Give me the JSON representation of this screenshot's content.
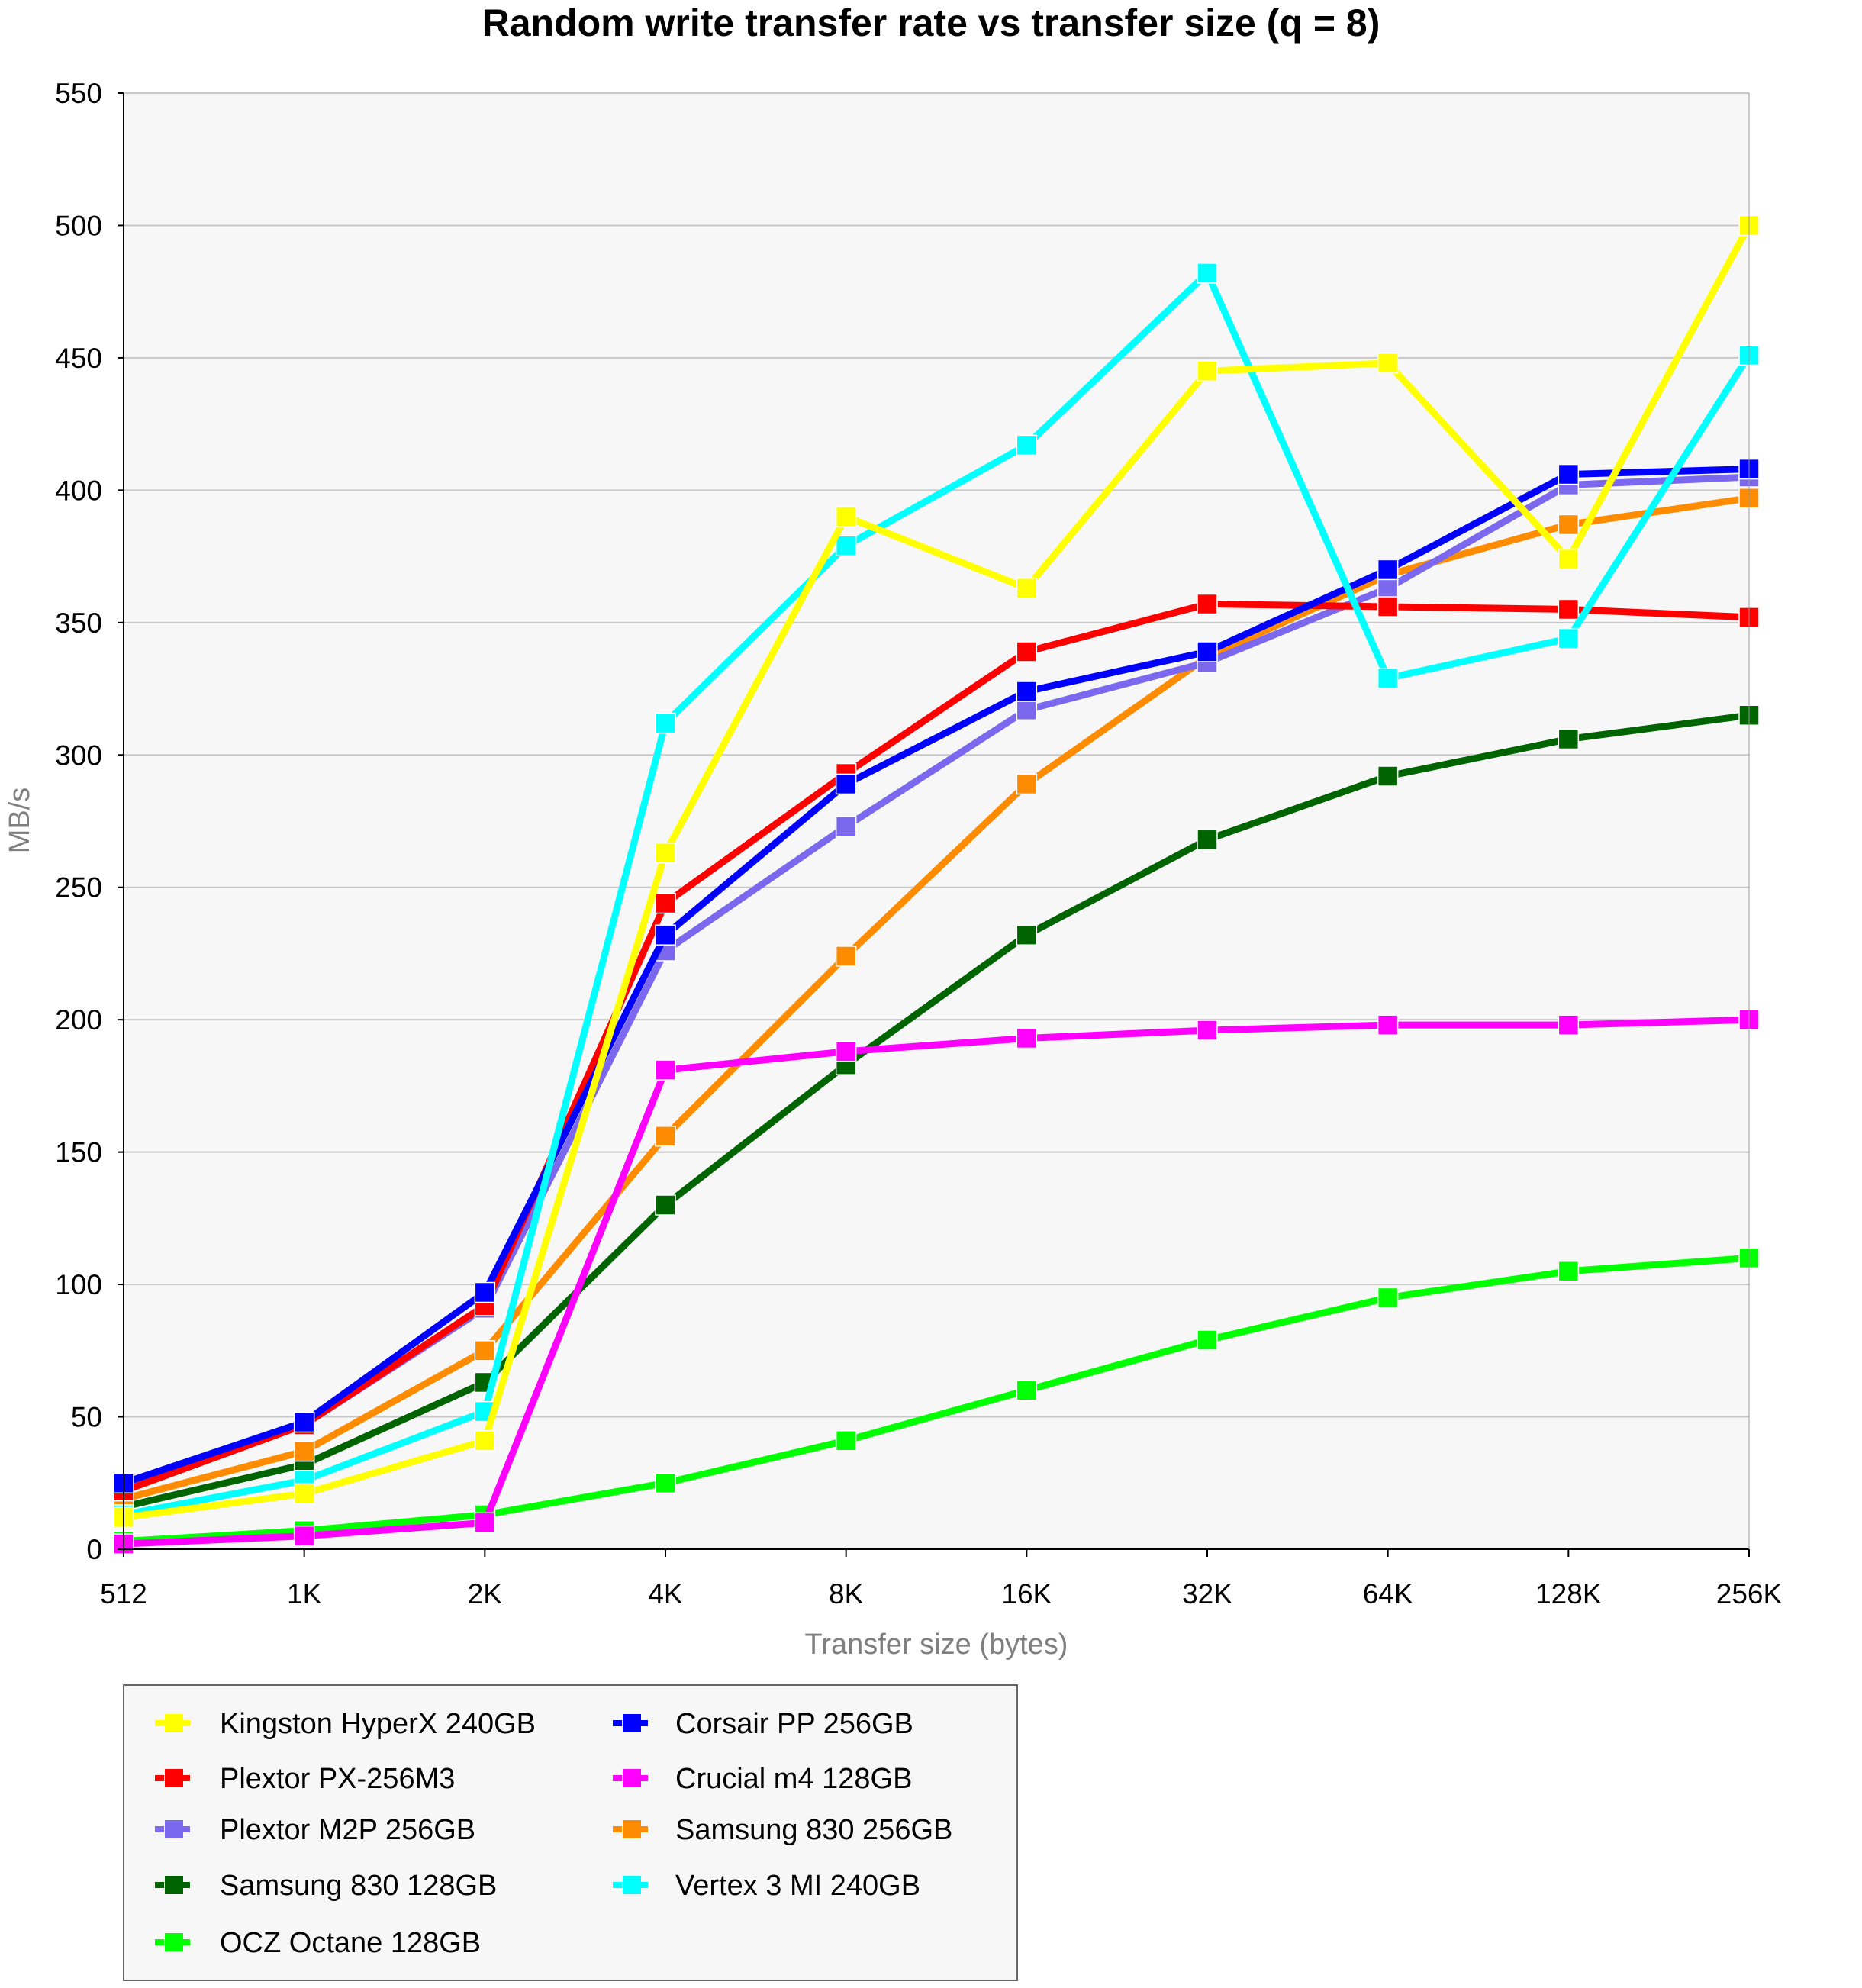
{
  "chart_data": {
    "type": "line",
    "title": "Random write transfer rate vs transfer size (q = 8)",
    "xlabel": "Transfer size (bytes)",
    "ylabel": "MB/s",
    "categories": [
      "512",
      "1K",
      "2K",
      "4K",
      "8K",
      "16K",
      "32K",
      "64K",
      "128K",
      "256K"
    ],
    "ylim": [
      0,
      550
    ],
    "yticks": [
      0,
      50,
      100,
      150,
      200,
      250,
      300,
      350,
      400,
      450,
      500,
      550
    ],
    "grid": true,
    "legend_placement": "bottom-left",
    "series": [
      {
        "name": "Kingston HyperX 240GB",
        "color": "#ffff00",
        "values": [
          12,
          21,
          41,
          263,
          390,
          363,
          445,
          448,
          374,
          500
        ]
      },
      {
        "name": "Corsair PP 256GB",
        "color": "#0000ff",
        "values": [
          25,
          48,
          97,
          232,
          289,
          324,
          339,
          370,
          406,
          408
        ]
      },
      {
        "name": "Plextor PX-256M3",
        "color": "#ff0000",
        "values": [
          22,
          47,
          92,
          244,
          293,
          339,
          357,
          356,
          355,
          352
        ]
      },
      {
        "name": "Crucial m4 128GB",
        "color": "#ff00ff",
        "values": [
          2,
          5,
          10,
          181,
          188,
          193,
          196,
          198,
          198,
          200
        ]
      },
      {
        "name": "Plextor M2P 256GB",
        "color": "#7b68ee",
        "values": [
          24,
          47,
          91,
          226,
          273,
          317,
          335,
          363,
          402,
          405
        ]
      },
      {
        "name": "Samsung 830 256GB",
        "color": "#ff8c00",
        "values": [
          19,
          37,
          75,
          156,
          224,
          289,
          337,
          368,
          387,
          397
        ]
      },
      {
        "name": "Samsung 830 128GB",
        "color": "#006400",
        "values": [
          16,
          32,
          63,
          130,
          183,
          232,
          268,
          292,
          306,
          315
        ]
      },
      {
        "name": "Vertex 3 MI 240GB",
        "color": "#00ffff",
        "values": [
          13,
          26,
          52,
          312,
          379,
          417,
          482,
          329,
          344,
          451
        ]
      },
      {
        "name": "OCZ Octane 128GB",
        "color": "#00ff00",
        "values": [
          3,
          7,
          13,
          25,
          41,
          60,
          79,
          95,
          105,
          110
        ]
      }
    ]
  }
}
